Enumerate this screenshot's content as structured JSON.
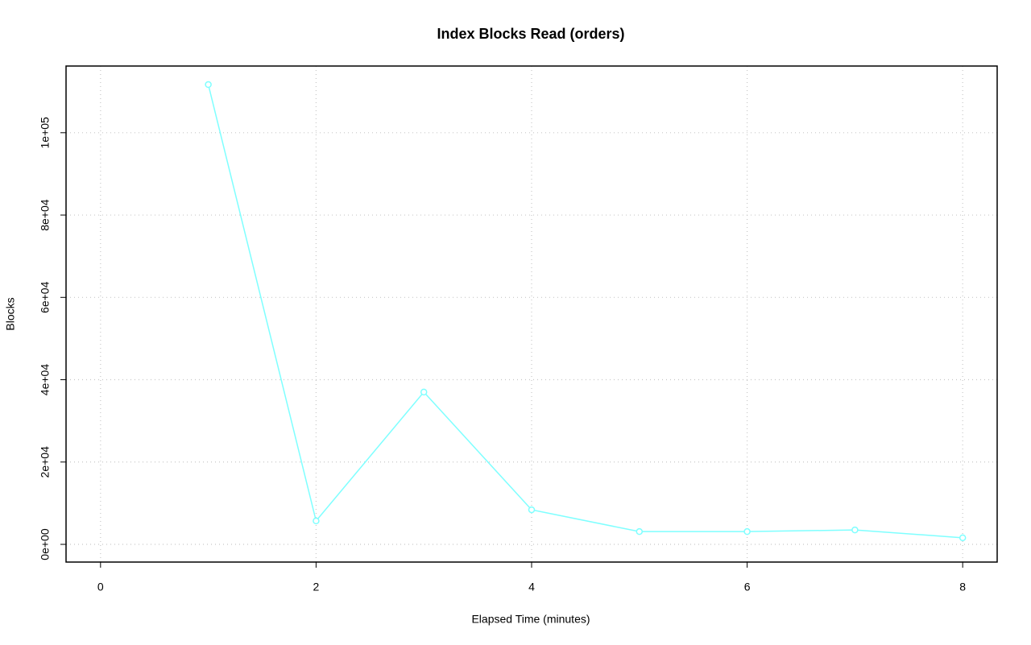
{
  "chart_data": {
    "type": "line",
    "title": "Index Blocks Read (orders)",
    "x_label": "Elapsed Time (minutes)",
    "y_label": "Blocks",
    "x": [
      1,
      2,
      3,
      4,
      5,
      6,
      7,
      8
    ],
    "series": [
      {
        "color": "#7fffff",
        "values": [
          111700,
          5700,
          37000,
          8400,
          3100,
          3100,
          3500,
          1600
        ]
      }
    ],
    "xlim": [
      -0.32,
      8.32
    ],
    "xticks": [
      0,
      2,
      4,
      6,
      8
    ],
    "ylim": [
      -4300,
      116200
    ],
    "yticks": [
      {
        "value": 0,
        "label": "0e+00"
      },
      {
        "value": 20000,
        "label": "2e+04"
      },
      {
        "value": 40000,
        "label": "4e+04"
      },
      {
        "value": 60000,
        "label": "6e+04"
      },
      {
        "value": 80000,
        "label": "8e+04"
      },
      {
        "value": 100000,
        "label": "1e+05"
      }
    ],
    "grid": true
  }
}
